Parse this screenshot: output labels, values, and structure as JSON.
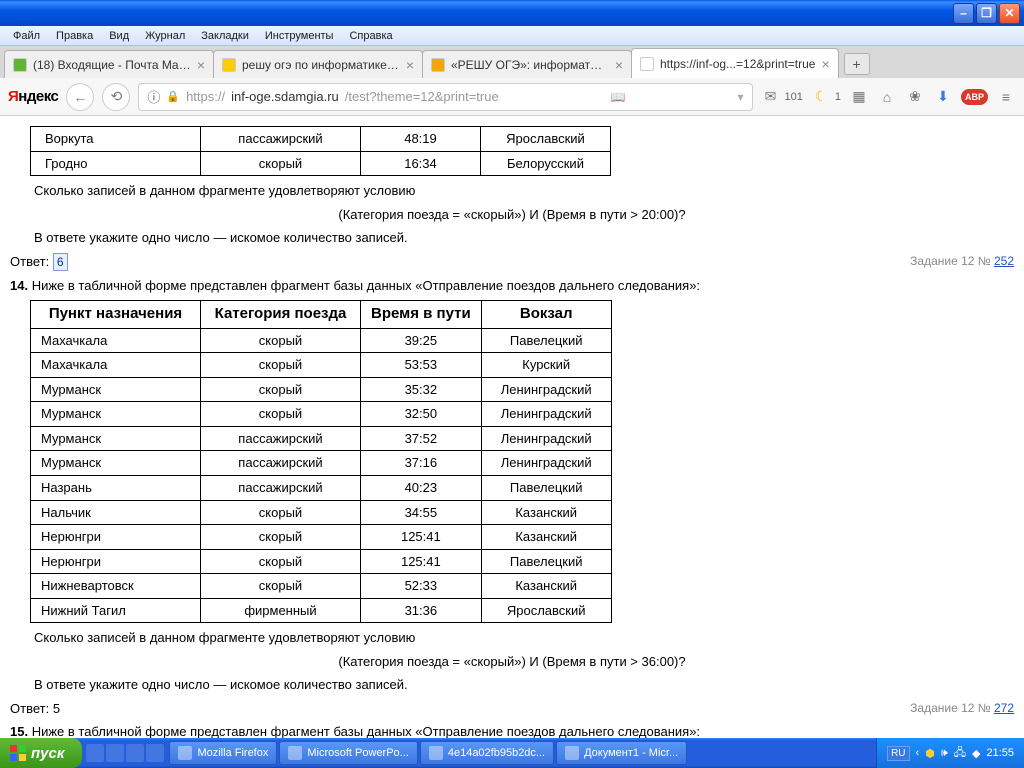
{
  "menu": [
    "Файл",
    "Правка",
    "Вид",
    "Журнал",
    "Закладки",
    "Инструменты",
    "Справка"
  ],
  "tabs": [
    {
      "label": "(18) Входящие - Почта Mail....",
      "favicon": "#62b435"
    },
    {
      "label": "решу огэ по информатике ...",
      "favicon": "#ffcc00"
    },
    {
      "label": "«РЕШУ ОГЭ»: информатика...",
      "favicon": "#f7a500"
    },
    {
      "label": "https://inf-og...=12&print=true",
      "favicon": "#ffffff"
    }
  ],
  "url": {
    "host": "inf-oge.sdamgia.ru",
    "path": "/test?theme=12&print=true",
    "proto": "https://"
  },
  "mail_count": "101",
  "moon_count": "1",
  "table1": {
    "rows": [
      [
        "Воркута",
        "пассажирский",
        "48:19",
        "Ярославский"
      ],
      [
        "Гродно",
        "скорый",
        "16:34",
        "Белорусский"
      ]
    ]
  },
  "q1": {
    "intro": "Сколько записей в данном фрагменте удовлетворяют условию",
    "cond": "(Категория поезда = «скорый») И (Время в пути > 20:00)?",
    "hint": "В ответе укажите одно число — искомое количество записей.",
    "ans_label": "Ответ: ",
    "ans": "6",
    "ref_text": "Задание 12 № ",
    "ref_num": "252"
  },
  "task14": {
    "num": "14.",
    "text": " Ниже в табличной форме представлен фрагмент базы данных «Отправление поездов дальнего следования»:"
  },
  "table2": {
    "headers": [
      "Пункт назначения",
      "Категория поезда",
      "Время в пути",
      "Вокзал"
    ],
    "rows": [
      [
        "Махачкала",
        "скорый",
        "39:25",
        "Павелецкий"
      ],
      [
        "Махачкала",
        "скорый",
        "53:53",
        "Курский"
      ],
      [
        "Мурманск",
        "скорый",
        "35:32",
        "Ленинградский"
      ],
      [
        "Мурманск",
        "скорый",
        "32:50",
        "Ленинградский"
      ],
      [
        "Мурманск",
        "пассажирский",
        "37:52",
        "Ленинградский"
      ],
      [
        "Мурманск",
        "пассажирский",
        "37:16",
        "Ленинградский"
      ],
      [
        "Назрань",
        "пассажирский",
        "40:23",
        "Павелецкий"
      ],
      [
        "Нальчик",
        "скорый",
        "34:55",
        "Казанский"
      ],
      [
        "Нерюнгри",
        "скорый",
        "125:41",
        "Казанский"
      ],
      [
        "Нерюнгри",
        "скорый",
        "125:41",
        "Павелецкий"
      ],
      [
        "Нижневартовск",
        "скорый",
        "52:33",
        "Казанский"
      ],
      [
        "Нижний Тагил",
        "фирменный",
        "31:36",
        "Ярославский"
      ]
    ]
  },
  "q2": {
    "intro": "Сколько записей в данном фрагменте удовлетворяют условию",
    "cond": "(Категория поезда = «скорый») И (Время в пути > 36:00)?",
    "hint": "В ответе укажите одно число — искомое количество записей.",
    "ans_label": "Ответ: ",
    "ans": "5",
    "ref_text": "Задание 12 № ",
    "ref_num": "272"
  },
  "task15": {
    "num": "15.",
    "text": " Ниже в табличной форме представлен фрагмент базы данных «Отправление поездов дальнего следования»:"
  },
  "taskbar": {
    "start": "пуск",
    "items": [
      "Mozilla Firefox",
      "Microsoft PowerPo...",
      "4e14a02fb95b2dc...",
      "Документ1 - Micr..."
    ],
    "lang": "RU",
    "time": "21:55"
  }
}
